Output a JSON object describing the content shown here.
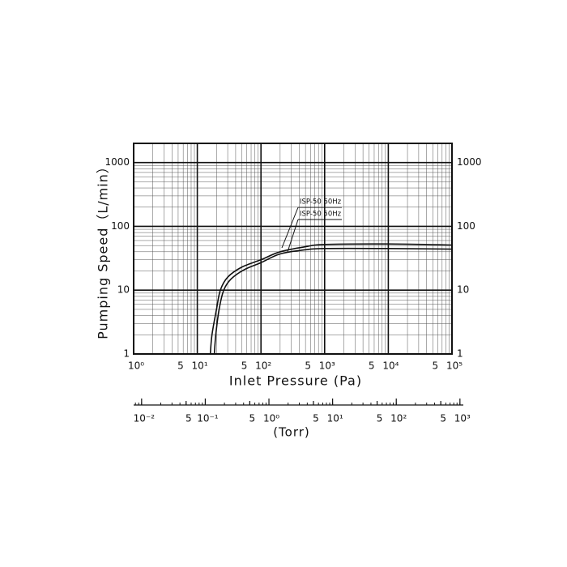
{
  "chart_data": {
    "type": "line",
    "x_label": "Inlet Pressure (Pa)",
    "y_label": "Pumping Speed（L/min）",
    "x2_label": "(Torr)",
    "xscale": "log",
    "yscale": "log",
    "x2scale": "log",
    "xlim": [
      1,
      100000
    ],
    "ylim": [
      1,
      2000
    ],
    "x2lim": [
      0.0075,
      1130
    ],
    "xticks": [
      {
        "value": 1,
        "label": "10⁰"
      },
      5,
      {
        "value": 10,
        "label": "10¹"
      },
      {
        "value": 50,
        "label": "5"
      },
      {
        "value": 100,
        "label": "10²"
      },
      {
        "value": 500,
        "label": "5"
      },
      {
        "value": 1000,
        "label": "10³"
      },
      {
        "value": 5000,
        "label": "5"
      },
      {
        "value": 10000,
        "label": "10⁴"
      },
      {
        "value": 50000,
        "label": "5"
      },
      {
        "value": 100000,
        "label": "10⁵"
      }
    ],
    "yticks": [
      1,
      10,
      100,
      1000
    ],
    "x2ticks": [
      {
        "value": 0.01,
        "label": "10⁻²"
      },
      {
        "value": 0.05,
        "label": "5"
      },
      {
        "value": 0.1,
        "label": "10⁻¹"
      },
      {
        "value": 0.5,
        "label": "5"
      },
      {
        "value": 1,
        "label": "10⁰"
      },
      5,
      {
        "value": 10,
        "label": "10¹"
      },
      {
        "value": 50,
        "label": "5"
      },
      {
        "value": 100,
        "label": "10²"
      },
      {
        "value": 500,
        "label": "5"
      },
      {
        "value": 1000,
        "label": "10³"
      }
    ],
    "grid": true,
    "minor_grid": true,
    "series": [
      {
        "name": "ISP-50 60Hz",
        "color": "#111111",
        "x": [
          16,
          17,
          20,
          23,
          30,
          50,
          100,
          200,
          500,
          1000,
          10000,
          100000
        ],
        "values": [
          1,
          2,
          5,
          10,
          16,
          23,
          30,
          40,
          48,
          52,
          53,
          51
        ]
      },
      {
        "name": "ISP-50 50Hz",
        "color": "#111111",
        "x": [
          18.5,
          19.5,
          22,
          26,
          34,
          55,
          100,
          200,
          500,
          1000,
          10000,
          100000
        ],
        "values": [
          1,
          2,
          5,
          10,
          15,
          21,
          27,
          37,
          43,
          45,
          45,
          44
        ]
      }
    ]
  }
}
